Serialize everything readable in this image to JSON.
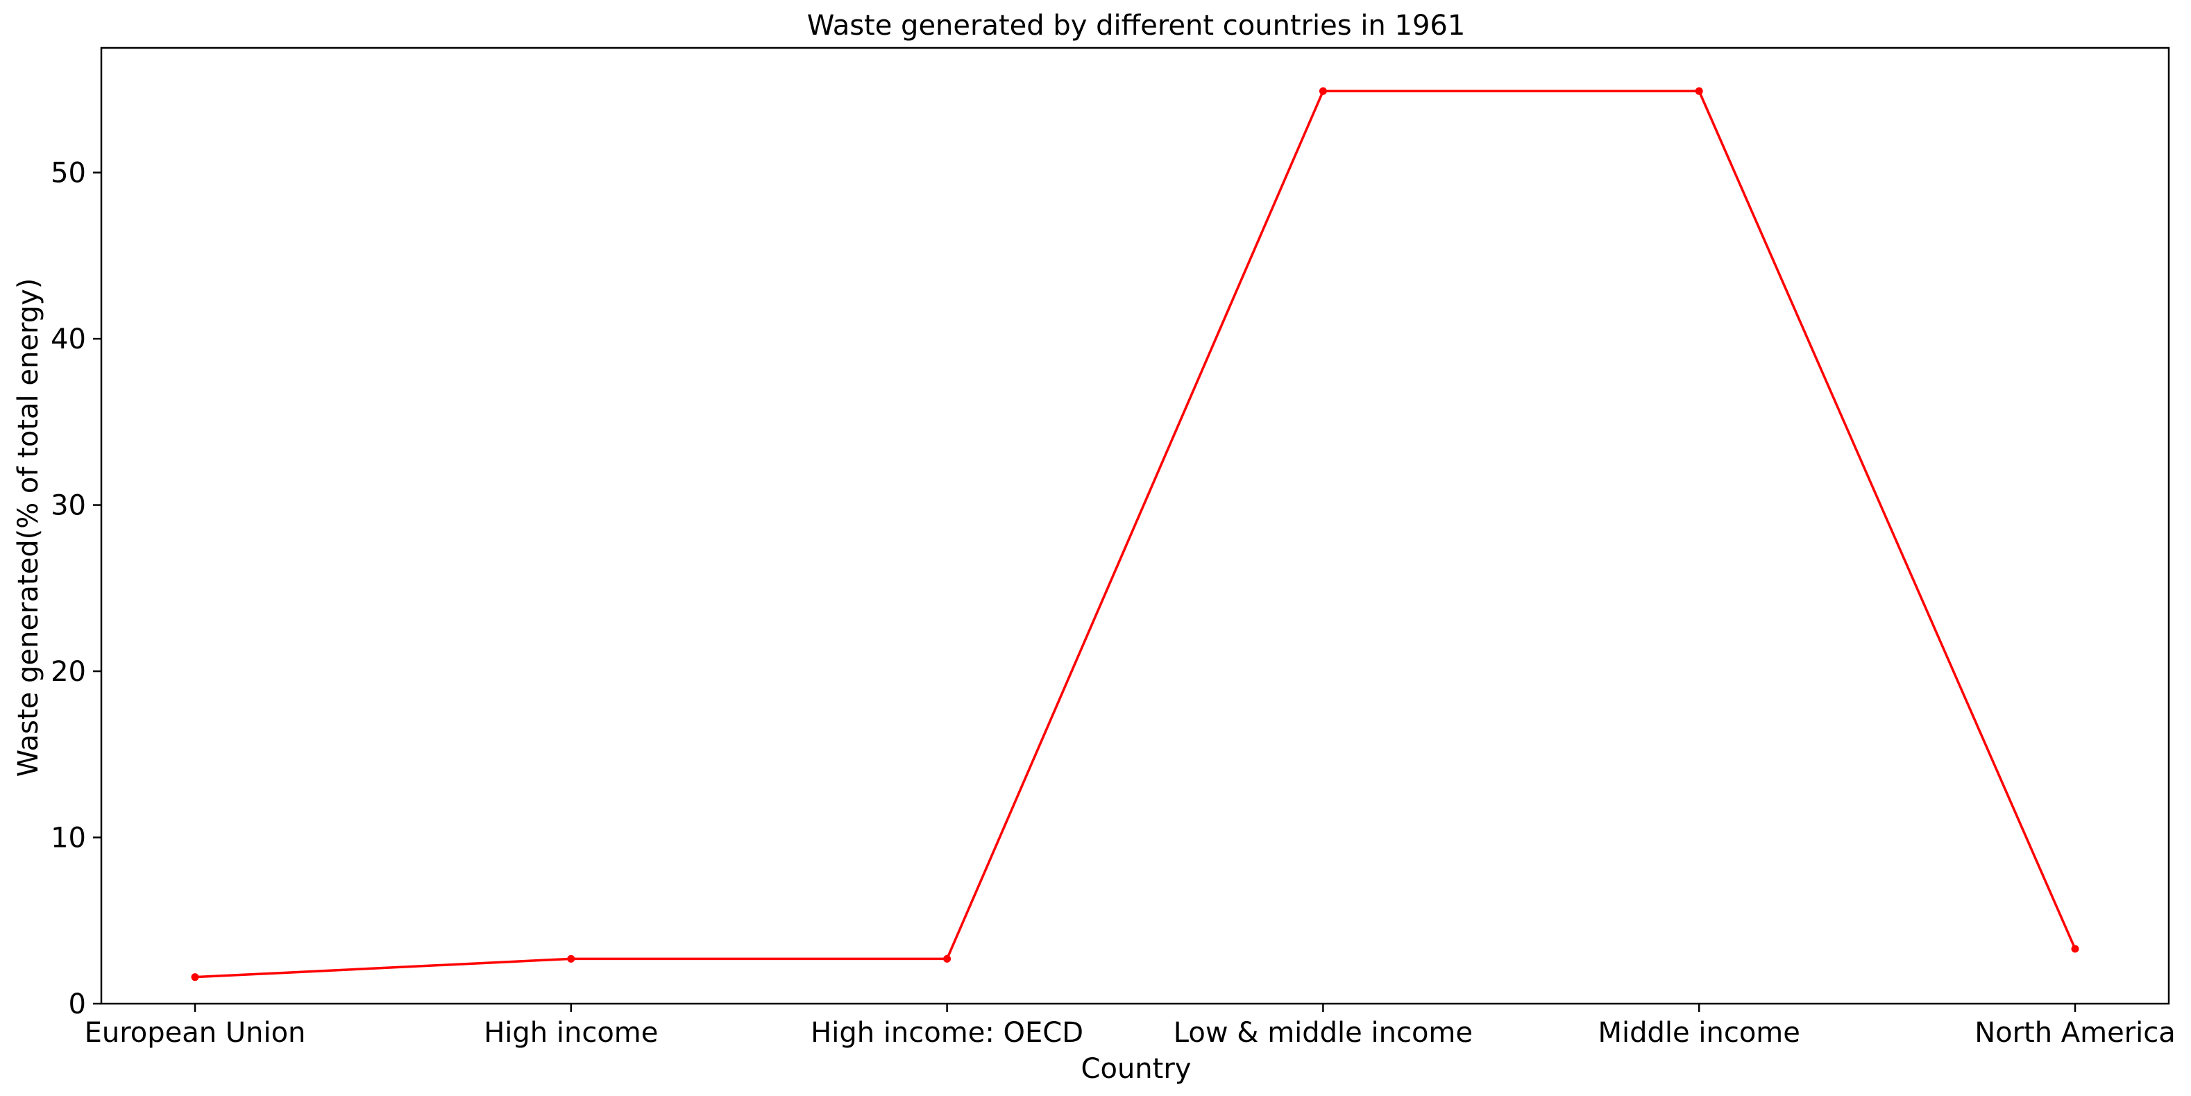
{
  "chart_data": {
    "type": "line",
    "title": "Waste generated by different countries in 1961",
    "xlabel": "Country",
    "ylabel": "Waste generated(% of total energy)",
    "categories": [
      "European Union",
      "High income",
      "High income: OECD",
      "Low & middle income",
      "Middle income",
      "North America"
    ],
    "series": [
      {
        "values": [
          1.6,
          2.7,
          2.7,
          54.9,
          54.9,
          3.3
        ],
        "color": "#ff0000"
      }
    ],
    "ylim": [
      0,
      57.5
    ],
    "yticks": [
      0,
      10,
      20,
      30,
      40,
      50
    ],
    "grid": false,
    "marker": "dot"
  }
}
